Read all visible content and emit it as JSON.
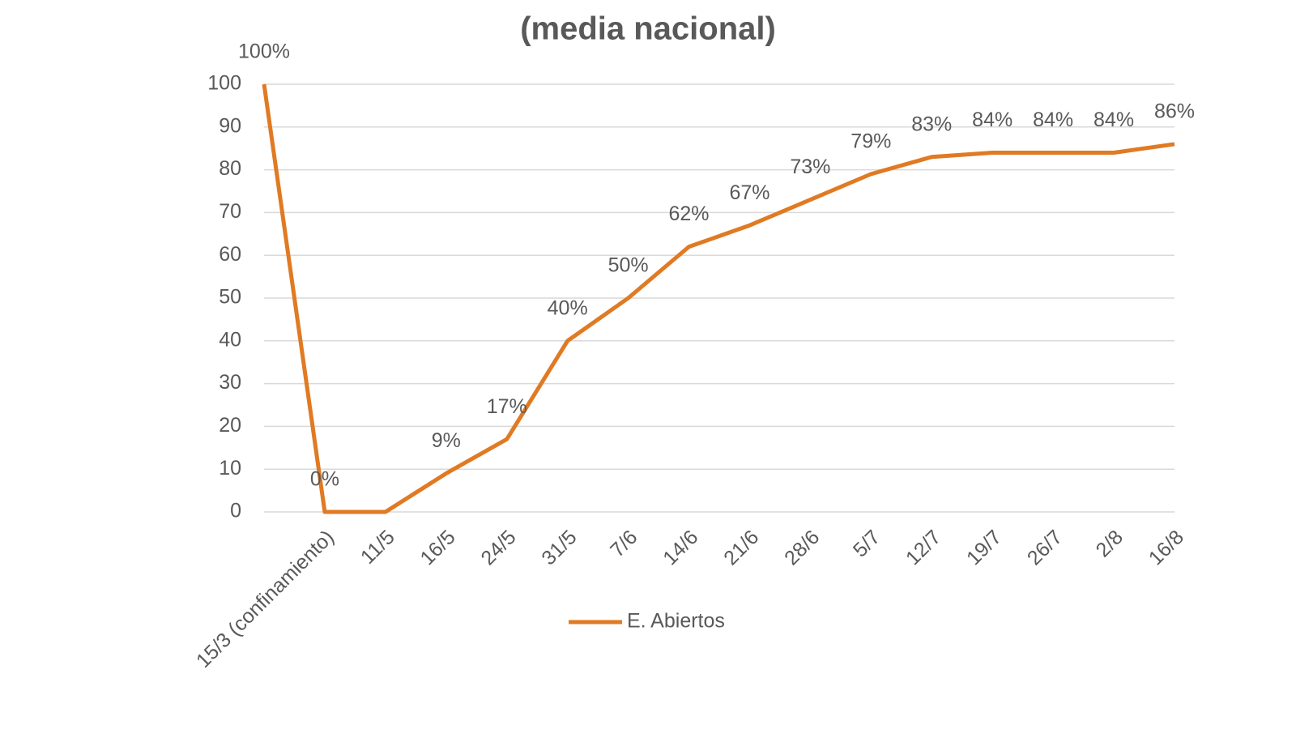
{
  "chart_data": {
    "type": "line",
    "title": "(media nacional)",
    "categories": [
      null,
      "15/3 (confinamiento)",
      "11/5",
      "16/5",
      "24/5",
      "31/5",
      "7/6",
      "14/6",
      "21/6",
      "28/6",
      "5/7",
      "12/7",
      "19/7",
      "26/7",
      "2/8",
      "16/8"
    ],
    "series": [
      {
        "name": "E. Abiertos",
        "color": "#e07a23",
        "values": [
          100,
          0,
          0,
          9,
          17,
          40,
          50,
          62,
          67,
          73,
          79,
          83,
          84,
          84,
          84,
          86
        ],
        "value_labels": [
          "100%",
          "0%",
          null,
          "9%",
          "17%",
          "40%",
          "50%",
          "62%",
          "67%",
          "73%",
          "79%",
          "83%",
          "84%",
          "84%",
          "84%",
          "86%"
        ]
      }
    ],
    "ylim": [
      0,
      100
    ],
    "yticks": [
      0,
      10,
      20,
      30,
      40,
      50,
      60,
      70,
      80,
      90,
      100
    ],
    "grid": true,
    "legend": "bottom"
  }
}
